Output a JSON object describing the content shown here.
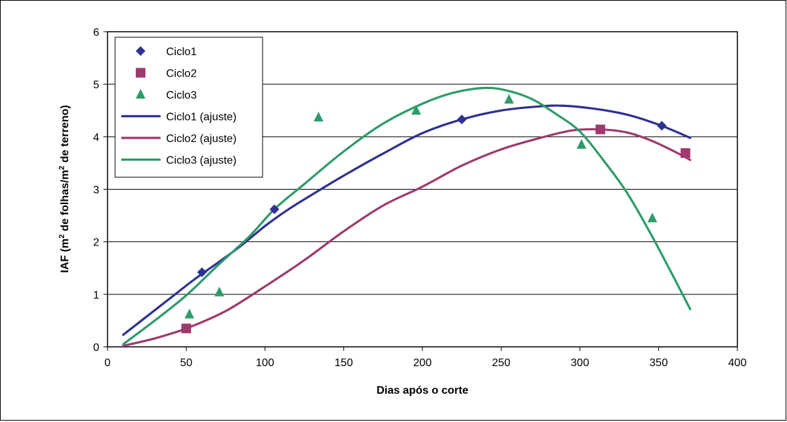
{
  "chart_data": {
    "type": "scatter",
    "xlabel": "Dias após o corte",
    "ylabel_parts": [
      "IAF (m",
      "2",
      " de folhas/m",
      "2",
      " de terreno)"
    ],
    "xlim": [
      0,
      400
    ],
    "ylim": [
      0,
      6
    ],
    "xticks": [
      0,
      50,
      100,
      150,
      200,
      250,
      300,
      350,
      400
    ],
    "yticks": [
      0,
      1,
      2,
      3,
      4,
      5,
      6
    ],
    "grid": "horizontal",
    "legend_position": "top-left",
    "series": [
      {
        "name": "Ciclo1",
        "kind": "points",
        "marker": "diamond",
        "color": "#2e3192",
        "points": [
          [
            60,
            1.42
          ],
          [
            106,
            2.62
          ],
          [
            225,
            4.33
          ],
          [
            352,
            4.21
          ]
        ]
      },
      {
        "name": "Ciclo2",
        "kind": "points",
        "marker": "square",
        "color": "#9e3a6e",
        "points": [
          [
            50,
            0.35
          ],
          [
            313,
            4.14
          ],
          [
            367,
            3.69
          ]
        ]
      },
      {
        "name": "Ciclo3",
        "kind": "points",
        "marker": "triangle",
        "color": "#2e9b68",
        "points": [
          [
            52,
            0.62
          ],
          [
            71,
            1.04
          ],
          [
            134,
            4.37
          ],
          [
            196,
            4.5
          ],
          [
            255,
            4.71
          ],
          [
            301,
            3.85
          ],
          [
            346,
            2.45
          ]
        ]
      },
      {
        "name": "Ciclo1 (ajuste)",
        "kind": "line",
        "color": "#2e3192",
        "points": [
          [
            10,
            0.23
          ],
          [
            25,
            0.58
          ],
          [
            40,
            0.93
          ],
          [
            55,
            1.28
          ],
          [
            70,
            1.6
          ],
          [
            85,
            1.93
          ],
          [
            100,
            2.3
          ],
          [
            115,
            2.62
          ],
          [
            130,
            2.9
          ],
          [
            150,
            3.26
          ],
          [
            175,
            3.68
          ],
          [
            200,
            4.07
          ],
          [
            225,
            4.33
          ],
          [
            250,
            4.5
          ],
          [
            275,
            4.58
          ],
          [
            290,
            4.59
          ],
          [
            310,
            4.53
          ],
          [
            330,
            4.42
          ],
          [
            350,
            4.23
          ],
          [
            370,
            3.98
          ]
        ]
      },
      {
        "name": "Ciclo2 (ajuste)",
        "kind": "line",
        "color": "#9e3a6e",
        "points": [
          [
            10,
            0.02
          ],
          [
            30,
            0.16
          ],
          [
            50,
            0.35
          ],
          [
            75,
            0.68
          ],
          [
            100,
            1.15
          ],
          [
            125,
            1.65
          ],
          [
            150,
            2.2
          ],
          [
            175,
            2.69
          ],
          [
            200,
            3.05
          ],
          [
            225,
            3.45
          ],
          [
            250,
            3.76
          ],
          [
            275,
            3.98
          ],
          [
            295,
            4.12
          ],
          [
            313,
            4.14
          ],
          [
            330,
            4.08
          ],
          [
            345,
            3.93
          ],
          [
            360,
            3.72
          ],
          [
            370,
            3.56
          ]
        ]
      },
      {
        "name": "Ciclo3 (ajuste)",
        "kind": "line",
        "color": "#2e9b68",
        "points": [
          [
            10,
            0.05
          ],
          [
            30,
            0.5
          ],
          [
            50,
            0.98
          ],
          [
            70,
            1.55
          ],
          [
            90,
            2.1
          ],
          [
            106,
            2.62
          ],
          [
            125,
            3.1
          ],
          [
            150,
            3.72
          ],
          [
            175,
            4.25
          ],
          [
            200,
            4.63
          ],
          [
            220,
            4.84
          ],
          [
            240,
            4.93
          ],
          [
            255,
            4.87
          ],
          [
            270,
            4.71
          ],
          [
            285,
            4.43
          ],
          [
            300,
            4.1
          ],
          [
            315,
            3.55
          ],
          [
            330,
            2.93
          ],
          [
            345,
            2.15
          ],
          [
            360,
            1.3
          ],
          [
            370,
            0.72
          ]
        ]
      }
    ]
  }
}
